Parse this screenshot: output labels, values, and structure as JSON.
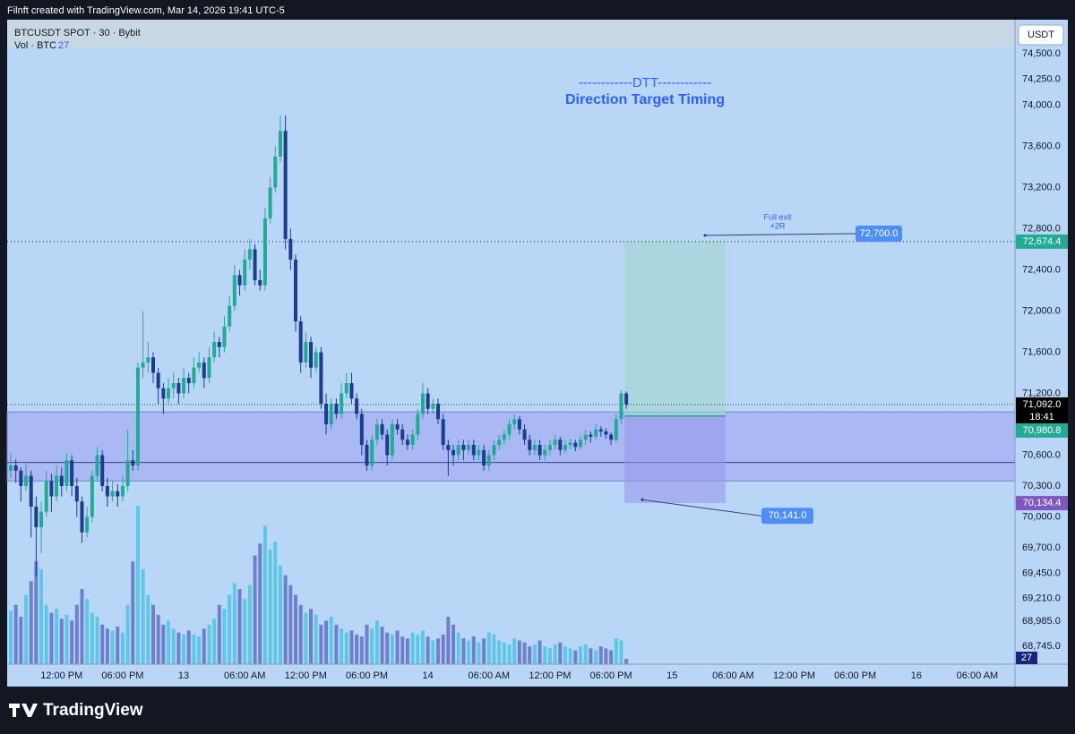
{
  "header": {
    "attribution": "Filnft created with TradingView.com, Mar 14, 2026 19:41 UTC-5"
  },
  "chart_data": {
    "type": "candlestick",
    "title": "BTCUSDT SPOT · 30 · Bybit",
    "volume_label": "Vol · BTC",
    "currency": "USDT",
    "up_color": "#22ab94",
    "down_color": "#1b3d8f",
    "ohlc": [
      [
        70450,
        70620,
        70380,
        70500
      ],
      [
        70500,
        70560,
        70330,
        70450
      ],
      [
        70450,
        70480,
        70150,
        70300
      ],
      [
        70300,
        70520,
        70250,
        70400
      ],
      [
        70400,
        70450,
        69800,
        70100
      ],
      [
        70100,
        70200,
        69420,
        69900
      ],
      [
        69900,
        70150,
        69650,
        70050
      ],
      [
        70050,
        70450,
        70000,
        70350
      ],
      [
        70350,
        70420,
        70050,
        70200
      ],
      [
        70200,
        70500,
        70150,
        70400
      ],
      [
        70400,
        70480,
        70200,
        70300
      ],
      [
        70300,
        70620,
        70250,
        70550
      ],
      [
        70550,
        70600,
        70200,
        70300
      ],
      [
        70300,
        70380,
        70000,
        70150
      ],
      [
        70150,
        70200,
        69750,
        69850
      ],
      [
        69850,
        70100,
        69800,
        70000
      ],
      [
        70000,
        70450,
        69950,
        70400
      ],
      [
        70400,
        70680,
        70350,
        70600
      ],
      [
        70600,
        70650,
        70250,
        70300
      ],
      [
        70300,
        70380,
        70100,
        70200
      ],
      [
        70200,
        70350,
        70150,
        70250
      ],
      [
        70250,
        70320,
        70100,
        70200
      ],
      [
        70200,
        70400,
        70150,
        70300
      ],
      [
        70300,
        70850,
        70250,
        70550
      ],
      [
        70550,
        70650,
        70450,
        70500
      ],
      [
        70500,
        71500,
        70450,
        71450
      ],
      [
        71450,
        72000,
        71350,
        71500
      ],
      [
        71500,
        71700,
        71400,
        71550
      ],
      [
        71550,
        71600,
        71300,
        71400
      ],
      [
        71400,
        71450,
        71100,
        71250
      ],
      [
        71250,
        71300,
        71000,
        71150
      ],
      [
        71150,
        71350,
        71100,
        71250
      ],
      [
        71250,
        71400,
        71150,
        71300
      ],
      [
        71300,
        71350,
        71100,
        71200
      ],
      [
        71200,
        71450,
        71150,
        71350
      ],
      [
        71350,
        71400,
        71200,
        71300
      ],
      [
        71300,
        71550,
        71250,
        71450
      ],
      [
        71450,
        71600,
        71400,
        71500
      ],
      [
        71500,
        71550,
        71250,
        71350
      ],
      [
        71350,
        71650,
        71300,
        71550
      ],
      [
        71550,
        71800,
        71500,
        71700
      ],
      [
        71700,
        71750,
        71550,
        71650
      ],
      [
        71650,
        71950,
        71600,
        71850
      ],
      [
        71850,
        72150,
        71800,
        72050
      ],
      [
        72050,
        72450,
        72000,
        72350
      ],
      [
        72350,
        72400,
        72150,
        72250
      ],
      [
        72250,
        72600,
        72200,
        72500
      ],
      [
        72500,
        72700,
        72400,
        72600
      ],
      [
        72600,
        72650,
        72250,
        72300
      ],
      [
        72300,
        72400,
        72200,
        72250
      ],
      [
        72250,
        73000,
        72200,
        72900
      ],
      [
        72900,
        73300,
        72850,
        73200
      ],
      [
        73200,
        73600,
        73150,
        73500
      ],
      [
        73500,
        73900,
        73450,
        73750
      ],
      [
        73750,
        73900,
        72600,
        72700
      ],
      [
        72700,
        72800,
        72400,
        72500
      ],
      [
        72500,
        72550,
        71800,
        71900
      ],
      [
        71900,
        71950,
        71400,
        71500
      ],
      [
        71500,
        71800,
        71450,
        71700
      ],
      [
        71700,
        71750,
        71350,
        71450
      ],
      [
        71450,
        71650,
        71400,
        71600
      ],
      [
        71600,
        71650,
        71050,
        71100
      ],
      [
        71100,
        71200,
        70800,
        70900
      ],
      [
        70900,
        71150,
        70850,
        71100
      ],
      [
        71100,
        71150,
        70950,
        71000
      ],
      [
        71000,
        71300,
        70950,
        71200
      ],
      [
        71200,
        71400,
        71150,
        71300
      ],
      [
        71300,
        71400,
        71100,
        71150
      ],
      [
        71150,
        71200,
        70950,
        71000
      ],
      [
        71000,
        71050,
        70600,
        70700
      ],
      [
        70700,
        70750,
        70450,
        70500
      ],
      [
        70500,
        70800,
        70450,
        70750
      ],
      [
        70750,
        70950,
        70700,
        70900
      ],
      [
        70900,
        70950,
        70750,
        70800
      ],
      [
        70800,
        70850,
        70500,
        70600
      ],
      [
        70600,
        70950,
        70550,
        70900
      ],
      [
        70900,
        70950,
        70800,
        70850
      ],
      [
        70850,
        70900,
        70700,
        70750
      ],
      [
        70750,
        70800,
        70650,
        70700
      ],
      [
        70700,
        70850,
        70650,
        70800
      ],
      [
        70800,
        71050,
        70750,
        71000
      ],
      [
        71000,
        71300,
        70950,
        71200
      ],
      [
        71200,
        71250,
        71000,
        71050
      ],
      [
        71050,
        71150,
        71000,
        71100
      ],
      [
        71100,
        71150,
        70900,
        70950
      ],
      [
        70950,
        71000,
        70650,
        70700
      ],
      [
        70700,
        70750,
        70400,
        70650
      ],
      [
        70650,
        70700,
        70500,
        70600
      ],
      [
        70600,
        70750,
        70550,
        70700
      ],
      [
        70700,
        70750,
        70550,
        70650
      ],
      [
        70650,
        70750,
        70600,
        70700
      ],
      [
        70700,
        70750,
        70550,
        70600
      ],
      [
        70600,
        70700,
        70550,
        70650
      ],
      [
        70650,
        70700,
        70450,
        70500
      ],
      [
        70500,
        70650,
        70450,
        70600
      ],
      [
        70600,
        70750,
        70550,
        70700
      ],
      [
        70700,
        70800,
        70650,
        70750
      ],
      [
        70750,
        70850,
        70700,
        70800
      ],
      [
        70800,
        70950,
        70750,
        70900
      ],
      [
        70900,
        71000,
        70850,
        70950
      ],
      [
        70950,
        70980,
        70800,
        70850
      ],
      [
        70850,
        70900,
        70700,
        70750
      ],
      [
        70750,
        70800,
        70600,
        70650
      ],
      [
        70650,
        70750,
        70600,
        70700
      ],
      [
        70700,
        70750,
        70550,
        70600
      ],
      [
        70600,
        70700,
        70550,
        70650
      ],
      [
        70650,
        70750,
        70600,
        70700
      ],
      [
        70700,
        70800,
        70650,
        70750
      ],
      [
        70750,
        70780,
        70600,
        70650
      ],
      [
        70650,
        70750,
        70620,
        70700
      ],
      [
        70700,
        70760,
        70660,
        70720
      ],
      [
        70720,
        70750,
        70640,
        70680
      ],
      [
        70680,
        70790,
        70650,
        70750
      ],
      [
        70750,
        70850,
        70700,
        70800
      ],
      [
        70800,
        70830,
        70720,
        70780
      ],
      [
        70780,
        70900,
        70750,
        70850
      ],
      [
        70850,
        70880,
        70780,
        70830
      ],
      [
        70830,
        70860,
        70760,
        70800
      ],
      [
        70800,
        70820,
        70700,
        70750
      ],
      [
        70750,
        71000,
        70720,
        70950
      ],
      [
        70950,
        71230,
        70900,
        71200
      ],
      [
        71200,
        71220,
        71050,
        71092
      ]
    ],
    "volume": {
      "up_color": "#5cc8e6",
      "down_color": "#6f7fd0",
      "ylim": [
        0,
        3260
      ],
      "values": [
        270,
        300,
        240,
        350,
        420,
        520,
        480,
        300,
        260,
        280,
        230,
        250,
        220,
        300,
        380,
        330,
        260,
        240,
        200,
        180,
        170,
        190,
        160,
        300,
        520,
        800,
        480,
        350,
        300,
        250,
        200,
        220,
        180,
        160,
        150,
        170,
        150,
        140,
        180,
        200,
        230,
        300,
        280,
        350,
        410,
        380,
        330,
        400,
        550,
        610,
        700,
        580,
        620,
        500,
        450,
        400,
        350,
        300,
        260,
        280,
        250,
        200,
        220,
        240,
        200,
        180,
        160,
        170,
        150,
        140,
        200,
        180,
        220,
        190,
        160,
        150,
        170,
        140,
        130,
        160,
        150,
        170,
        140,
        120,
        130,
        150,
        240,
        200,
        160,
        130,
        120,
        140,
        110,
        130,
        160,
        150,
        120,
        110,
        100,
        130,
        120,
        110,
        90,
        100,
        120,
        90,
        80,
        100,
        110,
        90,
        80,
        70,
        90,
        100,
        80,
        70,
        90,
        80,
        70,
        130,
        120,
        27
      ]
    },
    "xlim": [
      -0.7,
      197.4
    ],
    "xticks": [
      {
        "value": 10,
        "label": "12:00 PM"
      },
      {
        "value": 22,
        "label": "06:00 PM"
      },
      {
        "value": 34,
        "label": "13"
      },
      {
        "value": 46,
        "label": "06:00 AM"
      },
      {
        "value": 58,
        "label": "12:00 PM"
      },
      {
        "value": 70,
        "label": "06:00 PM"
      },
      {
        "value": 82,
        "label": "14"
      },
      {
        "value": 94,
        "label": "06:00 AM"
      },
      {
        "value": 106,
        "label": "12:00 PM"
      },
      {
        "value": 118,
        "label": "06:00 PM"
      },
      {
        "value": 130,
        "label": "15"
      },
      {
        "value": 142,
        "label": "06:00 AM"
      },
      {
        "value": 154,
        "label": "12:00 PM"
      },
      {
        "value": 166,
        "label": "06:00 PM"
      },
      {
        "value": 178,
        "label": "16"
      },
      {
        "value": 190,
        "label": "06:00 AM"
      }
    ],
    "ylim": [
      68570,
      74830
    ],
    "yticks": [
      {
        "value": 74500,
        "label": "74,500.0"
      },
      {
        "value": 74250,
        "label": "74,250.0"
      },
      {
        "value": 74000,
        "label": "74,000.0"
      },
      {
        "value": 73600,
        "label": "73,600.0"
      },
      {
        "value": 73200,
        "label": "73,200.0"
      },
      {
        "value": 72800,
        "label": "72,800.0"
      },
      {
        "value": 72400,
        "label": "72,400.0"
      },
      {
        "value": 72000,
        "label": "72,000.0"
      },
      {
        "value": 71600,
        "label": "71,600.0"
      },
      {
        "value": 71200,
        "label": "71,200.0"
      },
      {
        "value": 70600,
        "label": "70,600.0"
      },
      {
        "value": 70300,
        "label": "70,300.0"
      },
      {
        "value": 70000,
        "label": "70,000.0"
      },
      {
        "value": 69700,
        "label": "69,700.0"
      },
      {
        "value": 69450,
        "label": "69,450.0"
      },
      {
        "value": 69210,
        "label": "69,210.0"
      },
      {
        "value": 68985,
        "label": "68,985.0"
      },
      {
        "value": 68745,
        "label": "68,745.0"
      }
    ],
    "grid": false,
    "last_price": {
      "value": 71092.0,
      "label": "71,092.0",
      "countdown": "18:41",
      "color": "#000000"
    },
    "position": {
      "entry": 70980.8,
      "entry_label": "70,980.8",
      "target": 72674.4,
      "target_label": "72,674.4",
      "stop": 70134.4,
      "stop_label": "70,134.4",
      "profit_color": "#22ab94",
      "loss_color": "#7e57c2"
    },
    "zone": {
      "top": 71020,
      "bottom": 70350,
      "line": 70530
    },
    "annotations": [
      {
        "text": "------------DTT------------"
      },
      {
        "text": "Direction Target Timing"
      },
      {
        "text": "Full exit"
      },
      {
        "text": "+2R"
      },
      {
        "value": 72700,
        "label": "72,700.0"
      },
      {
        "value": 70141,
        "label": "70,141.0"
      }
    ]
  },
  "footer": {
    "brand": "TradingView"
  }
}
